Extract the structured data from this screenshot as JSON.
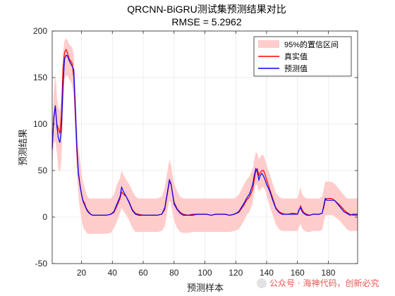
{
  "chart_data": {
    "type": "line",
    "title": "QRCNN-BiGRU测试集预测结果对比",
    "subtitle": "RMSE = 5.2962",
    "xlabel": "预测样本",
    "ylabel": "预测结果",
    "xlim": [
      1,
      199
    ],
    "ylim": [
      -50,
      200
    ],
    "xticks": [
      20,
      40,
      60,
      80,
      100,
      120,
      140,
      160,
      180
    ],
    "yticks": [
      -50,
      0,
      50,
      100,
      150,
      200
    ],
    "grid": true,
    "legend_position": "top-right",
    "x_knots": [
      1,
      2,
      3,
      4,
      5,
      6,
      7,
      8,
      9,
      10,
      11,
      12,
      13,
      14,
      15,
      16,
      17,
      18,
      19,
      20,
      21,
      22,
      23,
      24,
      25,
      26,
      27,
      28,
      30,
      33,
      36,
      39,
      41,
      43,
      45,
      46,
      47,
      49,
      51,
      53,
      55,
      57,
      60,
      63,
      66,
      69,
      72,
      74,
      75,
      76,
      77,
      78,
      79,
      80,
      82,
      84,
      86,
      89,
      92,
      95,
      98,
      101,
      104,
      107,
      110,
      113,
      116,
      119,
      122,
      125,
      127,
      129,
      131,
      132,
      133,
      134,
      135,
      136,
      137,
      138,
      139,
      140,
      142,
      144,
      146,
      148,
      150,
      152,
      154,
      156,
      158,
      160,
      161,
      162,
      163,
      164,
      166,
      168,
      170,
      172,
      174,
      176,
      177,
      178,
      179,
      180,
      182,
      184,
      186,
      188,
      190,
      192,
      194,
      196,
      199
    ],
    "series": [
      {
        "name": "真实值",
        "color": "#ff0000",
        "y": [
          75,
          108,
          118,
          100,
          95,
          90,
          110,
          160,
          177,
          180,
          176,
          170,
          168,
          165,
          150,
          110,
          70,
          45,
          35,
          25,
          18,
          15,
          10,
          7,
          5,
          3,
          2,
          2,
          2,
          2,
          2,
          3,
          5,
          12,
          20,
          27,
          25,
          22,
          16,
          8,
          4,
          3,
          2,
          2,
          2,
          2,
          3,
          8,
          18,
          28,
          38,
          35,
          26,
          16,
          9,
          5,
          3,
          2,
          3,
          3,
          3,
          3,
          2,
          3,
          3,
          3,
          2,
          3,
          5,
          12,
          18,
          22,
          30,
          40,
          50,
          52,
          45,
          48,
          50,
          50,
          46,
          40,
          30,
          20,
          10,
          6,
          4,
          3,
          3,
          4,
          4,
          3,
          7,
          12,
          8,
          5,
          3,
          2,
          3,
          3,
          3,
          4,
          10,
          18,
          20,
          20,
          20,
          18,
          15,
          12,
          8,
          5,
          3,
          2,
          2
        ]
      },
      {
        "name": "预测值",
        "color": "#0000ff",
        "y": [
          73,
          105,
          120,
          98,
          85,
          80,
          95,
          140,
          170,
          174,
          173,
          168,
          165,
          162,
          158,
          118,
          75,
          48,
          34,
          24,
          17,
          13,
          9,
          6,
          4,
          3,
          2,
          2,
          2,
          2,
          2,
          3,
          6,
          14,
          22,
          32,
          28,
          22,
          15,
          7,
          3,
          2,
          2,
          2,
          2,
          2,
          3,
          10,
          20,
          30,
          40,
          36,
          25,
          14,
          8,
          4,
          2,
          2,
          2,
          3,
          3,
          3,
          2,
          3,
          3,
          3,
          2,
          3,
          6,
          14,
          20,
          25,
          35,
          45,
          52,
          48,
          40,
          45,
          47,
          44,
          40,
          35,
          28,
          18,
          9,
          5,
          3,
          3,
          3,
          3,
          3,
          3,
          8,
          10,
          6,
          4,
          2,
          2,
          3,
          3,
          3,
          4,
          12,
          20,
          18,
          18,
          18,
          18,
          14,
          10,
          6,
          4,
          2,
          3,
          3
        ]
      }
    ],
    "band": {
      "name": "95%的置信区间",
      "color": "#ffcccc",
      "lower": [
        55,
        78,
        82,
        70,
        52,
        48,
        62,
        112,
        148,
        152,
        152,
        148,
        146,
        142,
        128,
        92,
        48,
        22,
        8,
        -3,
        -10,
        -14,
        -16,
        -18,
        -18,
        -18,
        -18,
        -18,
        -18,
        -18,
        -18,
        -17,
        -12,
        -5,
        5,
        10,
        7,
        2,
        -4,
        -12,
        -16,
        -16,
        -16,
        -16,
        -16,
        -16,
        -15,
        -10,
        0,
        10,
        18,
        15,
        5,
        -4,
        -12,
        -16,
        -17,
        -17,
        -16,
        -16,
        -16,
        -16,
        -16,
        -16,
        -16,
        -16,
        -16,
        -15,
        -13,
        -5,
        2,
        6,
        15,
        28,
        35,
        34,
        27,
        30,
        32,
        32,
        29,
        23,
        12,
        2,
        -8,
        -13,
        -15,
        -15,
        -15,
        -15,
        -15,
        -15,
        -11,
        -7,
        -12,
        -14,
        -16,
        -16,
        -15,
        -15,
        -15,
        -14,
        -6,
        2,
        2,
        2,
        2,
        1,
        -2,
        -5,
        -9,
        -13,
        -15,
        -15,
        -15
      ],
      "upper": [
        92,
        132,
        155,
        130,
        118,
        115,
        130,
        175,
        190,
        192,
        190,
        186,
        184,
        182,
        175,
        138,
        100,
        75,
        62,
        48,
        38,
        32,
        26,
        22,
        20,
        20,
        20,
        20,
        20,
        20,
        20,
        20,
        24,
        35,
        42,
        50,
        46,
        40,
        35,
        28,
        22,
        20,
        20,
        20,
        20,
        20,
        22,
        32,
        42,
        52,
        62,
        56,
        46,
        36,
        28,
        22,
        20,
        20,
        20,
        20,
        20,
        20,
        20,
        20,
        20,
        20,
        20,
        20,
        24,
        34,
        40,
        44,
        52,
        62,
        70,
        68,
        62,
        65,
        67,
        66,
        62,
        56,
        46,
        36,
        26,
        22,
        20,
        20,
        20,
        20,
        20,
        20,
        26,
        32,
        25,
        22,
        20,
        20,
        20,
        20,
        20,
        22,
        30,
        38,
        38,
        38,
        38,
        36,
        32,
        28,
        24,
        20,
        20,
        20,
        20
      ]
    }
  },
  "watermark": {
    "text": "公众号 · 海神代码，创新必究",
    "ghost_text": "海神代码",
    "color": "#e53935"
  }
}
